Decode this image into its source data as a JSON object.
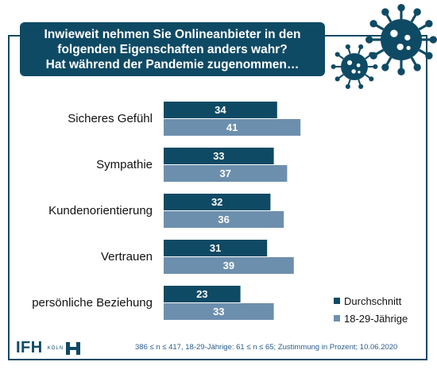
{
  "title": {
    "line1": "Inwieweit nehmen Sie Onlineanbieter in den",
    "line2": "folgenden Eigenschaften anders wahr?",
    "line3": "Hat während der Pandemie zugenommen…"
  },
  "legend": {
    "series1": "Durchschnitt",
    "series2": "18-29-Jährige"
  },
  "footer": {
    "note": "386 ≤ n ≤ 417, 18-29-Jährige: 61 ≤ n ≤ 65; Zustimmung in Prozent; 10.06.2020",
    "logo_text": "IFH",
    "logo_sub": "KÖLN"
  },
  "colors": {
    "dark": "#0f4a65",
    "light": "#6d8fae",
    "frame": "#0f4a65"
  },
  "chart_data": {
    "type": "bar",
    "orientation": "horizontal",
    "categories": [
      "Sicheres Gefühl",
      "Sympathie",
      "Kundenorientierung",
      "Vertrauen",
      "persönliche Beziehung"
    ],
    "series": [
      {
        "name": "Durchschnitt",
        "values": [
          34,
          33,
          32,
          31,
          23
        ]
      },
      {
        "name": "18-29-Jährige",
        "values": [
          41,
          37,
          36,
          39,
          33
        ]
      }
    ],
    "unit": "Prozent",
    "legend_position": "bottom-right"
  }
}
